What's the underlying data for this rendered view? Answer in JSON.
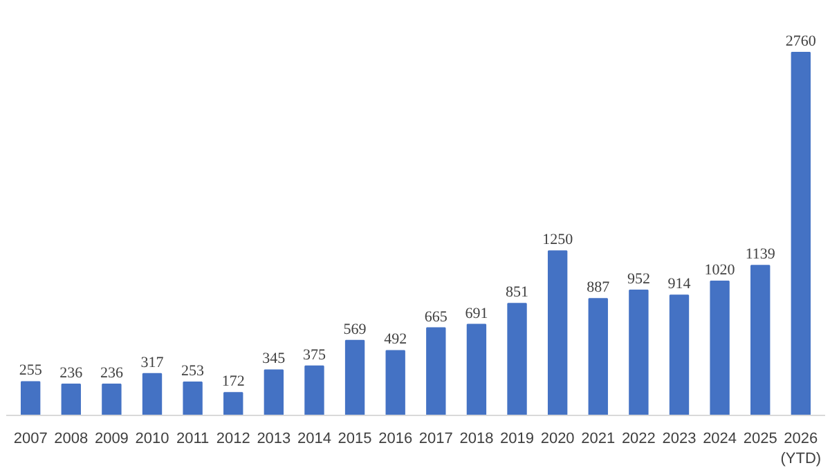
{
  "chart_data": {
    "type": "bar",
    "categories": [
      "2007",
      "2008",
      "2009",
      "2010",
      "2011",
      "2012",
      "2013",
      "2014",
      "2015",
      "2016",
      "2017",
      "2018",
      "2019",
      "2020",
      "2021",
      "2022",
      "2023",
      "2024",
      "2025",
      "2026\n(YTD)"
    ],
    "values": [
      255,
      236,
      236,
      317,
      253,
      172,
      345,
      375,
      569,
      492,
      665,
      691,
      851,
      1250,
      887,
      952,
      914,
      1020,
      1139,
      2760
    ],
    "color": "#4472c4",
    "data_labels": true,
    "grid": false
  }
}
